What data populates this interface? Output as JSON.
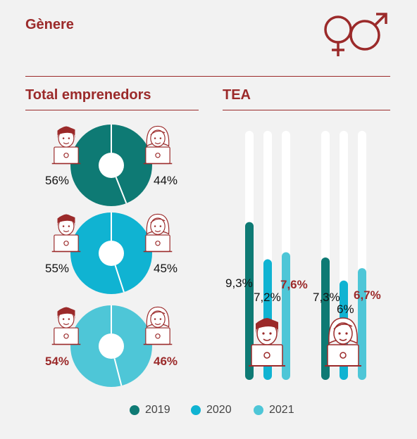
{
  "header": {
    "title": "Gènere",
    "icon": "gender-symbols-icon"
  },
  "sections": {
    "left_title": "Total emprenedors",
    "right_title": "TEA"
  },
  "colors": {
    "c2019": "#0e7a74",
    "c2020": "#10b3d2",
    "c2021": "#4ec6d7",
    "accent": "#9b2a2a"
  },
  "chart_data": [
    {
      "type": "pie",
      "title": "Total emprenedors",
      "series": [
        {
          "name": "2019",
          "values": [
            56,
            44
          ],
          "labels": [
            "56%",
            "44%"
          ]
        },
        {
          "name": "2020",
          "values": [
            55,
            45
          ],
          "labels": [
            "55%",
            "45%"
          ]
        },
        {
          "name": "2021",
          "values": [
            54,
            46
          ],
          "labels": [
            "54%",
            "46%"
          ]
        }
      ],
      "categories": [
        "home",
        "dona"
      ]
    },
    {
      "type": "bar",
      "title": "TEA",
      "categories": [
        "home",
        "dona"
      ],
      "series": [
        {
          "name": "2019",
          "values": [
            9.3,
            7.3
          ],
          "labels": [
            "9,3%",
            "7,3%"
          ]
        },
        {
          "name": "2020",
          "values": [
            7.2,
            6.0
          ],
          "labels": [
            "7,2%",
            "6%"
          ]
        },
        {
          "name": "2021",
          "values": [
            7.6,
            6.7
          ],
          "labels": [
            "7,6%",
            "6,7%"
          ]
        }
      ]
    }
  ],
  "legend": [
    "2019",
    "2020",
    "2021"
  ]
}
